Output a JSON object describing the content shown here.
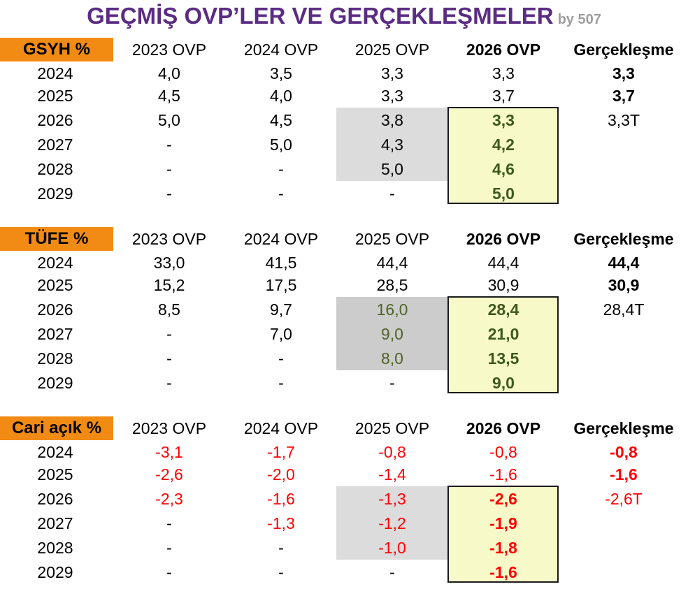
{
  "title": {
    "main": "GEÇMİŞ OVP’LER VE GERÇEKLEŞMELER",
    "by": "by 507"
  },
  "columns": [
    "2023 OVP",
    "2024 OVP",
    "2025 OVP",
    "2026 OVP",
    "Gerçekleşme"
  ],
  "sections": [
    {
      "label": "GSYH %",
      "rows": [
        {
          "year": "2024",
          "v": [
            "4,0",
            "3,5",
            "3,3",
            "3,3",
            "3,3"
          ]
        },
        {
          "year": "2025",
          "v": [
            "4,5",
            "4,0",
            "3,3",
            "3,7",
            "3,7"
          ]
        },
        {
          "year": "2026",
          "v": [
            "5,0",
            "4,5",
            "3,8",
            "3,3",
            "3,3T"
          ]
        },
        {
          "year": "2027",
          "v": [
            "-",
            "5,0",
            "4,3",
            "4,2",
            ""
          ]
        },
        {
          "year": "2028",
          "v": [
            "-",
            "-",
            "5,0",
            "4,6",
            ""
          ]
        },
        {
          "year": "2029",
          "v": [
            "-",
            "-",
            "-",
            "5,0",
            ""
          ]
        }
      ]
    },
    {
      "label": "TÜFE %",
      "rows": [
        {
          "year": "2024",
          "v": [
            "33,0",
            "41,5",
            "44,4",
            "44,4",
            "44,4"
          ]
        },
        {
          "year": "2025",
          "v": [
            "15,2",
            "17,5",
            "28,5",
            "30,9",
            "30,9"
          ]
        },
        {
          "year": "2026",
          "v": [
            "8,5",
            "9,7",
            "16,0",
            "28,4",
            "28,4T"
          ]
        },
        {
          "year": "2027",
          "v": [
            "-",
            "7,0",
            "9,0",
            "21,0",
            ""
          ]
        },
        {
          "year": "2028",
          "v": [
            "-",
            "-",
            "8,0",
            "13,5",
            ""
          ]
        },
        {
          "year": "2029",
          "v": [
            "-",
            "-",
            "-",
            "9,0",
            ""
          ]
        }
      ]
    },
    {
      "label": "Cari açık %",
      "rows": [
        {
          "year": "2024",
          "v": [
            "-3,1",
            "-1,7",
            "-0,8",
            "-0,8",
            "-0,8"
          ]
        },
        {
          "year": "2025",
          "v": [
            "-2,6",
            "-2,0",
            "-1,4",
            "-1,6",
            "-1,6"
          ]
        },
        {
          "year": "2026",
          "v": [
            "-2,3",
            "-1,6",
            "-1,3",
            "-2,6",
            "-2,6T"
          ]
        },
        {
          "year": "2027",
          "v": [
            "-",
            "-1,3",
            "-1,2",
            "-1,9",
            ""
          ]
        },
        {
          "year": "2028",
          "v": [
            "-",
            "-",
            "-1,0",
            "-1,8",
            ""
          ]
        },
        {
          "year": "2029",
          "v": [
            "-",
            "-",
            "-",
            "-1,6",
            ""
          ]
        }
      ]
    }
  ],
  "colors": {
    "title": "#5b2c83",
    "label_bg": "#f28b14",
    "highlight_bg": "#f7f9c8",
    "shade_bg": "#dcdcdc",
    "negative": "#ff0000",
    "projection_text": "#3d5a1e"
  }
}
